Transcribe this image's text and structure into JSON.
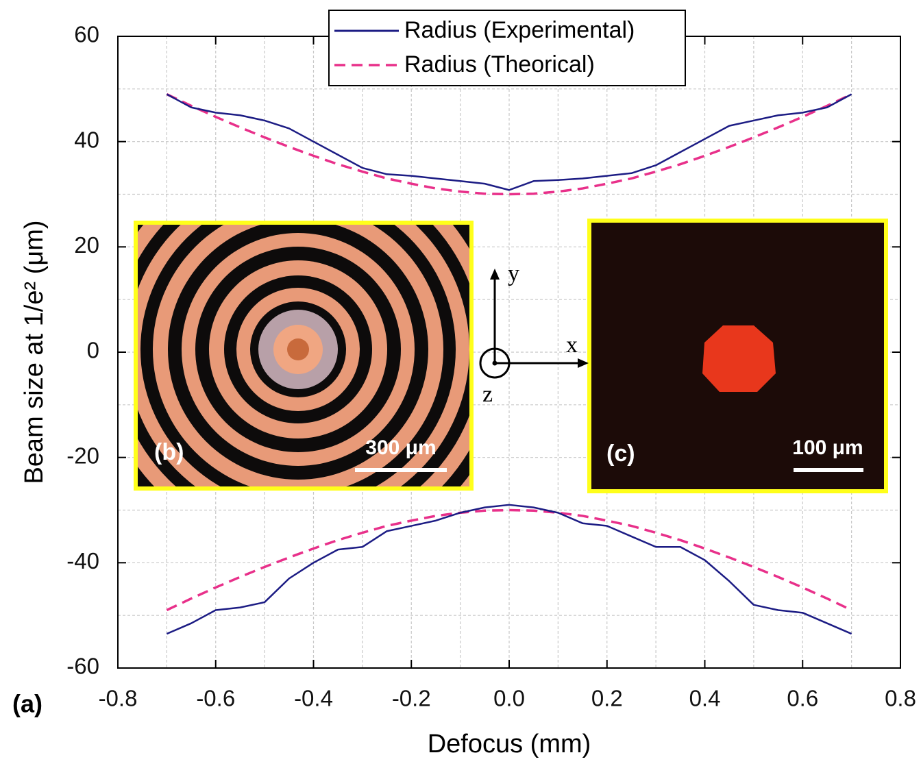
{
  "chart_data": {
    "type": "line",
    "x_label": "Defocus (mm)",
    "y_label": "Beam size at 1/e² (μm)",
    "panel_label": "(a)",
    "x": [
      -0.7,
      -0.65,
      -0.6,
      -0.55,
      -0.5,
      -0.45,
      -0.4,
      -0.35,
      -0.3,
      -0.25,
      -0.2,
      -0.15,
      -0.1,
      -0.05,
      0,
      0.05,
      0.1,
      0.15,
      0.2,
      0.25,
      0.3,
      0.35,
      0.4,
      0.45,
      0.5,
      0.55,
      0.6,
      0.65,
      0.7
    ],
    "series": [
      {
        "name": "Radius (Experimental)",
        "color": "#1c1c84",
        "dashed": false,
        "values": [
          49,
          46.5,
          45.5,
          45,
          44,
          42.5,
          40,
          37.5,
          35,
          33.8,
          33.5,
          33,
          32.5,
          32,
          30.8,
          32.5,
          32.7,
          33,
          33.5,
          34,
          35.5,
          38,
          40.5,
          43,
          44,
          45,
          45.5,
          46.5,
          49
        ],
        "lower_values": [
          -53.5,
          -51.5,
          -49,
          -48.5,
          -47.5,
          -43,
          -40,
          -37.5,
          -37,
          -34,
          -33,
          -32,
          -30.5,
          -29.5,
          -29,
          -29.5,
          -30.5,
          -32.5,
          -33,
          -35,
          -37,
          -37,
          -39.5,
          -43.5,
          -48,
          -49,
          -49.5,
          -51.5,
          -53.5
        ]
      },
      {
        "name": "Radius (Theorical)",
        "color": "#e8308a",
        "dashed": true,
        "values": [
          49,
          46.8,
          44.7,
          42.7,
          40.8,
          39,
          37.3,
          35.7,
          34.3,
          33,
          32,
          31.1,
          30.5,
          30.1,
          30,
          30.1,
          30.5,
          31.1,
          32,
          33,
          34.3,
          35.7,
          37.3,
          39,
          40.8,
          42.7,
          44.7,
          46.8,
          49
        ],
        "lower_values": [
          -49,
          -46.8,
          -44.7,
          -42.7,
          -40.8,
          -39,
          -37.3,
          -35.7,
          -34.3,
          -33,
          -32,
          -31.1,
          -30.5,
          -30.1,
          -30,
          -30.1,
          -30.5,
          -31.1,
          -32,
          -33,
          -34.3,
          -35.7,
          -37.3,
          -39,
          -40.8,
          -42.7,
          -44.7,
          -46.8,
          -49
        ]
      }
    ],
    "xlim": [
      -0.8,
      0.8
    ],
    "ylim": [
      -60,
      60
    ],
    "xticks": [
      -0.8,
      -0.6,
      -0.4,
      -0.2,
      {
        "value": 0,
        "label": "0.0"
      },
      0.2,
      0.4,
      0.6,
      0.8
    ],
    "yticks": [
      -60,
      -40,
      -20,
      0,
      20,
      40,
      60
    ],
    "x_minor_grid": [
      -0.7,
      -0.5,
      -0.3,
      -0.1,
      0.1,
      0.3,
      0.5,
      0.7
    ],
    "y_minor_grid": [
      -50,
      -30,
      -10,
      10,
      30,
      50
    ],
    "grid": true,
    "legend_position": "top",
    "annotations": {
      "inset_b": {
        "label": "(b)",
        "scale": "300 μm"
      },
      "inset_c": {
        "label": "(c)",
        "scale": "100 μm"
      },
      "axes": {
        "y": "y",
        "x": "x",
        "z": "z"
      }
    }
  }
}
